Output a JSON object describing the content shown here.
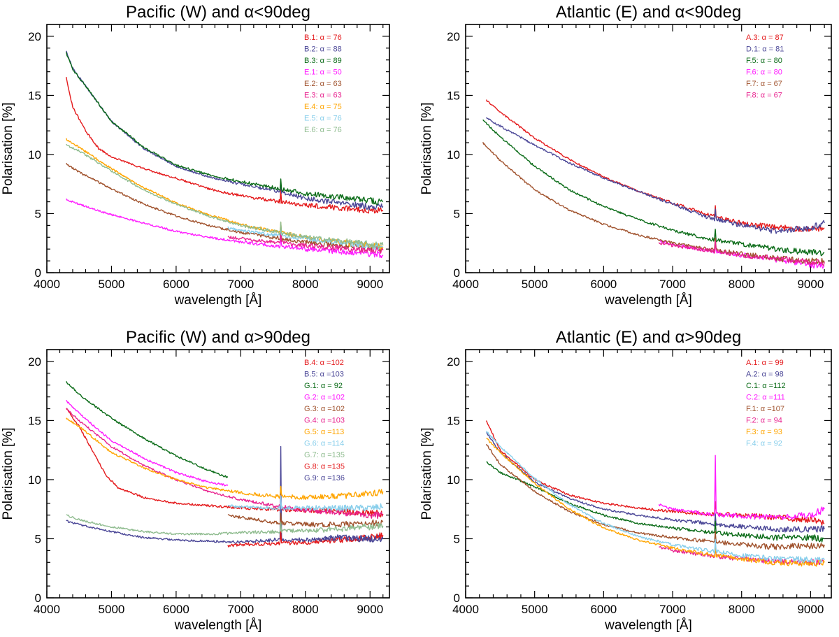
{
  "chart_data": [
    {
      "type": "line",
      "title": "Pacific (W) and α<90deg",
      "xlabel": "wavelength [Å]",
      "ylabel": "Polarisation [%]",
      "xlim": [
        4000,
        9300
      ],
      "ylim": [
        0,
        21
      ],
      "xticks": [
        4000,
        5000,
        6000,
        7000,
        8000,
        9000
      ],
      "yticks": [
        0,
        5,
        10,
        15,
        20
      ],
      "legend": "top-right",
      "series": [
        {
          "name": "B.1: α = 76",
          "color": "#e41a1c",
          "x": [
            4300,
            4400,
            4600,
            4800,
            5000,
            5500,
            6000,
            6500,
            7000,
            7500,
            8000,
            8500,
            9000,
            9200
          ],
          "y": [
            16.5,
            14.0,
            12.0,
            10.5,
            9.8,
            8.8,
            8.0,
            7.1,
            6.5,
            6.1,
            5.7,
            5.5,
            5.3,
            5.2
          ]
        },
        {
          "name": "B.2: α = 88",
          "color": "#4b4797",
          "x": [
            4300,
            4400,
            4600,
            4800,
            5000,
            5500,
            6000,
            6500,
            7000,
            7500,
            8000,
            8500,
            9000,
            9200
          ],
          "y": [
            18.7,
            17.3,
            15.8,
            14.3,
            12.8,
            10.5,
            9.0,
            8.1,
            7.5,
            7.0,
            6.3,
            5.9,
            5.6,
            5.6
          ]
        },
        {
          "name": "B.3: α = 89",
          "color": "#0a6b17",
          "x": [
            4300,
            4400,
            4600,
            4800,
            5000,
            5500,
            6000,
            6500,
            7000,
            7500,
            8000,
            8500,
            9000,
            9200
          ],
          "y": [
            18.6,
            17.2,
            15.8,
            14.3,
            12.8,
            10.6,
            9.1,
            8.3,
            7.7,
            7.2,
            6.7,
            6.4,
            6.1,
            6.0
          ]
        },
        {
          "name": "E.1: α = 50",
          "color": "#ff1cff",
          "x": [
            4300,
            4500,
            5000,
            5500,
            6000,
            6500,
            7000,
            7500,
            8000,
            8500,
            9000,
            9200
          ],
          "y": [
            6.2,
            5.8,
            4.9,
            4.2,
            3.5,
            3.0,
            2.6,
            2.3,
            2.0,
            1.8,
            1.6,
            1.5
          ]
        },
        {
          "name": "E.2: α = 63",
          "color": "#a0522d",
          "x": [
            4300,
            4500,
            5000,
            5500,
            6000,
            6500,
            7000,
            7500,
            8000,
            8500,
            9000,
            9200
          ],
          "y": [
            9.2,
            8.5,
            7.1,
            5.8,
            4.8,
            4.0,
            3.4,
            3.0,
            2.6,
            2.3,
            2.1,
            2.0
          ]
        },
        {
          "name": "E.3: α = 63",
          "color": "#e8238f",
          "x": [
            6800,
            7000,
            7500,
            8000,
            8500,
            9000,
            9200
          ],
          "y": [
            3.0,
            2.9,
            2.6,
            2.3,
            2.1,
            1.9,
            1.9
          ]
        },
        {
          "name": "E.4: α = 75",
          "color": "#ffa500",
          "x": [
            4300,
            4500,
            5000,
            5500,
            6000,
            6500,
            7000,
            7500,
            8000,
            8500,
            9000,
            9200
          ],
          "y": [
            11.3,
            10.6,
            8.8,
            7.2,
            5.9,
            4.9,
            4.1,
            3.5,
            3.0,
            2.6,
            2.3,
            2.2
          ]
        },
        {
          "name": "E.5: α = 76",
          "color": "#87ceeb",
          "x": [
            6800,
            7000,
            7500,
            8000,
            8500,
            9000,
            9200
          ],
          "y": [
            3.8,
            3.6,
            3.2,
            2.9,
            2.6,
            2.3,
            2.2
          ]
        },
        {
          "name": "E.6: α = 76",
          "color": "#8fbc8f",
          "x": [
            4300,
            4500,
            5000,
            5500,
            6000,
            6500,
            7000,
            7500,
            8000,
            8500,
            9000,
            9200
          ],
          "y": [
            10.8,
            10.3,
            8.6,
            7.0,
            5.8,
            4.8,
            4.0,
            3.5,
            3.0,
            2.7,
            2.4,
            2.3
          ]
        }
      ]
    },
    {
      "type": "line",
      "title": "Atlantic (E) and α<90deg",
      "xlabel": "wavelength [Å]",
      "ylabel": "Polarisation [%]",
      "xlim": [
        4000,
        9300
      ],
      "ylim": [
        0,
        21
      ],
      "xticks": [
        4000,
        5000,
        6000,
        7000,
        8000,
        9000
      ],
      "yticks": [
        0,
        5,
        10,
        15,
        20
      ],
      "legend": "top-right",
      "series": [
        {
          "name": "A.3: α = 87",
          "color": "#e41a1c",
          "x": [
            4300,
            4500,
            5000,
            5500,
            6000,
            6500,
            7000,
            7500,
            8000,
            8500,
            9000,
            9200
          ],
          "y": [
            14.6,
            13.6,
            11.4,
            9.6,
            8.1,
            6.9,
            5.9,
            4.9,
            4.2,
            3.8,
            3.7,
            3.8
          ]
        },
        {
          "name": "D.1: α = 81",
          "color": "#4b4797",
          "x": [
            4300,
            4500,
            5000,
            5500,
            6000,
            6500,
            7000,
            7500,
            8000,
            8500,
            9000,
            9200
          ],
          "y": [
            13.1,
            12.4,
            10.8,
            9.3,
            8.0,
            6.9,
            5.8,
            4.7,
            4.0,
            3.5,
            3.8,
            4.2
          ]
        },
        {
          "name": "F.5: α = 80",
          "color": "#0a6b17",
          "x": [
            4250,
            4500,
            5000,
            5500,
            6000,
            6500,
            7000,
            7500,
            8000,
            8500,
            9000,
            9200
          ],
          "y": [
            12.9,
            11.5,
            9.0,
            7.0,
            5.6,
            4.5,
            3.6,
            2.9,
            2.4,
            2.0,
            1.7,
            1.7
          ]
        },
        {
          "name": "F.6: α = 80",
          "color": "#ff1cff",
          "x": [
            6800,
            7000,
            7500,
            8000,
            8500,
            9000,
            9200
          ],
          "y": [
            2.7,
            2.4,
            1.9,
            1.5,
            1.1,
            0.7,
            0.6
          ]
        },
        {
          "name": "F.7: α = 67",
          "color": "#a0522d",
          "x": [
            4250,
            4500,
            5000,
            5500,
            6000,
            6500,
            7000,
            7500,
            8000,
            8500,
            9000,
            9200
          ],
          "y": [
            11.0,
            9.5,
            7.0,
            5.3,
            4.1,
            3.2,
            2.5,
            2.0,
            1.6,
            1.2,
            1.0,
            0.9
          ]
        },
        {
          "name": "F.8: α = 67",
          "color": "#e8238f",
          "x": [
            6800,
            7000,
            7500,
            8000,
            8500,
            9000,
            9200
          ],
          "y": [
            2.5,
            2.3,
            1.9,
            1.5,
            1.2,
            0.9,
            0.9
          ]
        }
      ]
    },
    {
      "type": "line",
      "title": "Pacific (W) and α>90deg",
      "xlabel": "wavelength [Å]",
      "ylabel": "Polarisation [%]",
      "xlim": [
        4000,
        9300
      ],
      "ylim": [
        0,
        21
      ],
      "xticks": [
        4000,
        5000,
        6000,
        7000,
        8000,
        9000
      ],
      "yticks": [
        0,
        5,
        10,
        15,
        20
      ],
      "legend": "top-right",
      "series": [
        {
          "name": "B.4: α =102",
          "color": "#e41a1c",
          "x": [
            4300,
            4500,
            4700,
            4900,
            5100,
            5500,
            6000,
            6500,
            7000,
            7500,
            8000,
            8500,
            9000,
            9200
          ],
          "y": [
            16.0,
            14.5,
            12.5,
            10.5,
            9.3,
            8.5,
            8.0,
            7.8,
            7.6,
            7.5,
            7.4,
            7.3,
            7.2,
            7.1
          ]
        },
        {
          "name": "B.5: α =103",
          "color": "#4b4797",
          "x": [
            4300,
            4500,
            5000,
            5500,
            6000,
            6500,
            7000,
            7500,
            8000,
            8500,
            9000,
            9200
          ],
          "y": [
            6.5,
            6.2,
            5.6,
            5.1,
            4.9,
            4.8,
            4.7,
            4.9,
            4.9,
            5.0,
            5.0,
            5.1
          ]
        },
        {
          "name": "G.1: α = 92",
          "color": "#0a6b17",
          "x": [
            4300,
            4500,
            5000,
            5500,
            6000,
            6500,
            6800
          ],
          "y": [
            18.3,
            17.2,
            15.2,
            13.5,
            12.0,
            10.8,
            10.2
          ]
        },
        {
          "name": "G.2: α =102",
          "color": "#ff1cff",
          "x": [
            4300,
            4500,
            5000,
            5500,
            6000,
            6500,
            6800
          ],
          "y": [
            16.7,
            15.6,
            13.3,
            11.8,
            10.6,
            9.8,
            9.5
          ]
        },
        {
          "name": "G.3: α =102",
          "color": "#a0522d",
          "x": [
            6800,
            7000,
            7500,
            8000,
            8500,
            9000,
            9200
          ],
          "y": [
            7.0,
            6.8,
            6.4,
            6.2,
            6.2,
            6.3,
            6.4
          ]
        },
        {
          "name": "G.4: α =103",
          "color": "#e8238f",
          "x": [
            4300,
            4500,
            5000,
            5500,
            6000,
            6500,
            7000,
            7500,
            8000,
            8500,
            9000,
            9200
          ],
          "y": [
            16.0,
            15.0,
            12.8,
            11.2,
            10.0,
            9.0,
            8.3,
            7.8,
            7.4,
            7.2,
            7.0,
            7.0
          ]
        },
        {
          "name": "G.5: α =113",
          "color": "#ffa500",
          "x": [
            4300,
            4500,
            5000,
            5500,
            6000,
            6500,
            7000,
            7500,
            8000,
            8500,
            9000,
            9200
          ],
          "y": [
            15.2,
            14.5,
            12.3,
            11.0,
            10.0,
            9.3,
            8.9,
            8.6,
            8.5,
            8.6,
            8.8,
            9.0
          ]
        },
        {
          "name": "G.6: α =114",
          "color": "#87ceeb",
          "x": [
            6800,
            7000,
            7500,
            8000,
            8500,
            9000,
            9200
          ],
          "y": [
            7.8,
            7.7,
            7.6,
            7.6,
            7.6,
            7.6,
            7.7
          ]
        },
        {
          "name": "G.7: α =135",
          "color": "#8fbc8f",
          "x": [
            4300,
            4500,
            5000,
            5500,
            6000,
            6500,
            7000,
            7500,
            8000,
            8500,
            9000,
            9200
          ],
          "y": [
            7.0,
            6.6,
            6.0,
            5.6,
            5.4,
            5.4,
            5.5,
            5.6,
            5.7,
            5.8,
            6.0,
            6.1
          ]
        },
        {
          "name": "G.8: α =135",
          "color": "#e41a1c",
          "x": [
            6800,
            7000,
            7500,
            8000,
            8500,
            9000,
            9200
          ],
          "y": [
            4.4,
            4.5,
            4.6,
            4.7,
            4.9,
            5.1,
            5.3
          ]
        },
        {
          "name": "G.9: α =136",
          "color": "#4b4797",
          "x": [
            8200,
            8500,
            9000,
            9200
          ],
          "y": [
            5.0,
            5.1,
            5.0,
            5.0
          ]
        }
      ]
    },
    {
      "type": "line",
      "title": "Atlantic (E) and α>90deg",
      "xlabel": "wavelength [Å]",
      "ylabel": "Polarisation [%]",
      "xlim": [
        4000,
        9300
      ],
      "ylim": [
        0,
        21
      ],
      "xticks": [
        4000,
        5000,
        6000,
        7000,
        8000,
        9000
      ],
      "yticks": [
        0,
        5,
        10,
        15,
        20
      ],
      "legend": "top-right",
      "series": [
        {
          "name": "A.1: α = 99",
          "color": "#e41a1c",
          "x": [
            4300,
            4500,
            5000,
            5500,
            6000,
            6500,
            7000,
            7500,
            8000,
            8500,
            9000,
            9200
          ],
          "y": [
            15.0,
            12.5,
            10.0,
            8.7,
            8.0,
            7.6,
            7.3,
            7.1,
            7.0,
            6.8,
            6.6,
            6.3
          ]
        },
        {
          "name": "A.2: α = 98",
          "color": "#4b4797",
          "x": [
            4300,
            4500,
            5000,
            5500,
            6000,
            6500,
            7000,
            7500,
            8000,
            8500,
            9000,
            9200
          ],
          "y": [
            14.0,
            12.3,
            9.8,
            8.4,
            7.5,
            7.0,
            6.6,
            6.3,
            6.0,
            5.8,
            5.8,
            5.8
          ]
        },
        {
          "name": "C.1: α =112",
          "color": "#0a6b17",
          "x": [
            4300,
            4500,
            5000,
            5500,
            6000,
            6500,
            7000,
            7500,
            8000,
            8500,
            9000,
            9200
          ],
          "y": [
            11.5,
            10.6,
            9.4,
            8.0,
            7.0,
            6.3,
            5.9,
            5.6,
            5.3,
            5.1,
            5.1,
            5.0
          ]
        },
        {
          "name": "C.2: α =111",
          "color": "#ff1cff",
          "x": [
            6800,
            7000,
            7500,
            8000,
            8500,
            9000,
            9200
          ],
          "y": [
            7.9,
            7.5,
            7.1,
            6.9,
            6.8,
            7.0,
            7.5
          ]
        },
        {
          "name": "F.1: α =107",
          "color": "#a0522d",
          "x": [
            4300,
            4500,
            5000,
            5500,
            6000,
            6500,
            7000,
            7500,
            8000,
            8500,
            9000,
            9200
          ],
          "y": [
            13.0,
            11.3,
            9.0,
            7.3,
            6.2,
            5.5,
            5.1,
            4.8,
            4.5,
            4.3,
            4.4,
            4.5
          ]
        },
        {
          "name": "F.2: α = 94",
          "color": "#e8238f",
          "x": [
            6800,
            7000,
            7500,
            8000,
            8500,
            9000,
            9200
          ],
          "y": [
            4.3,
            4.0,
            3.6,
            3.3,
            3.1,
            3.0,
            3.0
          ]
        },
        {
          "name": "F.3: α = 93",
          "color": "#ffa500",
          "x": [
            4300,
            4500,
            5000,
            5500,
            6000,
            6500,
            7000,
            7500,
            8000,
            8500,
            9000,
            9200
          ],
          "y": [
            13.5,
            12.3,
            9.7,
            7.5,
            5.9,
            4.9,
            4.2,
            3.7,
            3.3,
            3.0,
            2.9,
            3.0
          ]
        },
        {
          "name": "F.4: α = 92",
          "color": "#87ceeb",
          "x": [
            4300,
            4500,
            5000,
            5500,
            6000,
            6500,
            7000,
            7500,
            8000,
            8500,
            9000,
            9200
          ],
          "y": [
            14.1,
            12.8,
            10.1,
            7.9,
            6.3,
            5.2,
            4.5,
            4.0,
            3.6,
            3.3,
            3.2,
            3.2
          ]
        }
      ]
    }
  ]
}
